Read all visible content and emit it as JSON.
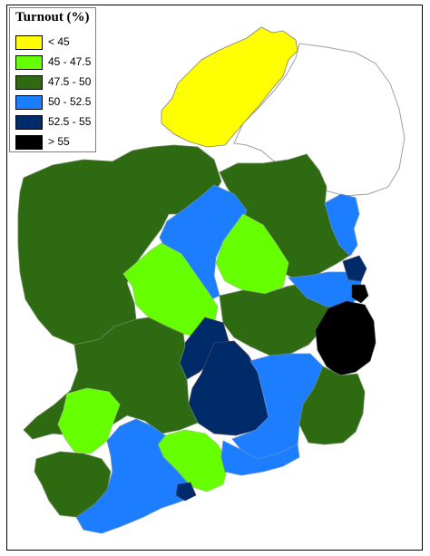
{
  "legend": {
    "title": "Turnout (%)",
    "items": [
      {
        "label": "< 45",
        "color": "#ffff00"
      },
      {
        "label": "45 - 47.5",
        "color": "#66ff00"
      },
      {
        "label": "47.5 - 50",
        "color": "#2d6a12"
      },
      {
        "label": "50 - 52.5",
        "color": "#1c7dff"
      },
      {
        "label": "52.5 - 55",
        "color": "#002b6b"
      },
      {
        "label": "> 55",
        "color": "#000000"
      }
    ]
  }
}
